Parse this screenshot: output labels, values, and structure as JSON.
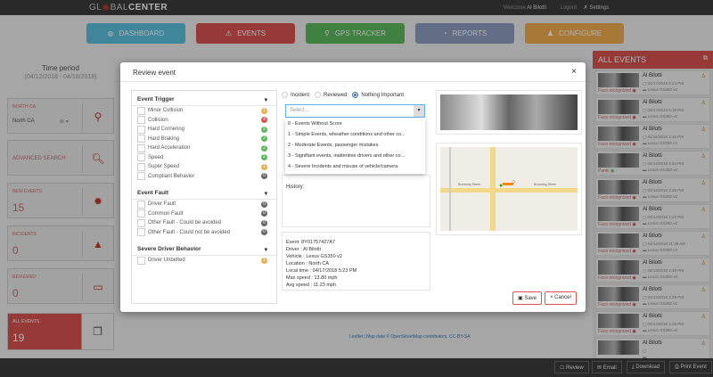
{
  "header": {
    "logo_prefix": "GL",
    "logo_mid": "BAL",
    "logo_bold": "CENTER",
    "welcome": "Welcome",
    "user": "Al Bilotti",
    "logout": "Logout",
    "settings": "Settings"
  },
  "nav": [
    {
      "label": "DASHBOARD",
      "icon": "dashboard-icon",
      "color": "#5bc0de"
    },
    {
      "label": "EVENTS",
      "icon": "warning-icon",
      "color": "#d9534f"
    },
    {
      "label": "GPS TRACKER",
      "icon": "map-pin-icon",
      "color": "#5cb85c"
    },
    {
      "label": "REPORTS",
      "icon": "pie-chart-icon",
      "color": "#8e9dbf"
    },
    {
      "label": "CONFIGURE",
      "icon": "user-icon",
      "color": "#f0ad4e"
    }
  ],
  "sidebar": {
    "time_period": "Time period",
    "range": "(04/12/2018 - 04/18/2018)",
    "region_label": "NORTH CA",
    "region_value": "North CA",
    "advanced": "ADVANCED SEARCH",
    "new_events": {
      "label": "NEW EVENTS",
      "value": "15"
    },
    "incidents": {
      "label": "INCIDENTS",
      "value": "0"
    },
    "reviewed": {
      "label": "REVIEWED",
      "value": "0"
    },
    "all_events": {
      "label": "ALL EVENTS",
      "value": "19"
    }
  },
  "right": {
    "title": "ALL EVENTS",
    "items": [
      {
        "name": "Al Bilotti",
        "date": "04/17/2018 5:23 PM",
        "vehicle": "Lexus GS350 v2",
        "status": "Face recognized"
      },
      {
        "name": "Al Bilotti",
        "date": "04/17/2018 5:18 PM",
        "vehicle": "Lexus GS350 v2",
        "status": "Face recognized"
      },
      {
        "name": "Al Bilotti",
        "date": "04/15/2018 1:45 PM",
        "vehicle": "Lexus GS350 v2",
        "status": "Face recognized"
      },
      {
        "name": "Al Bilotti",
        "date": "04/14/2018 2:34 PM",
        "vehicle": "Lexus GS350 v2",
        "status": "Panic"
      },
      {
        "name": "Al Bilotti",
        "date": "04/14/2018 2:26 PM",
        "vehicle": "Lexus GS350 v2",
        "status": "Face recognized"
      },
      {
        "name": "Al Bilotti",
        "date": "04/14/2018 1:44 PM",
        "vehicle": "Lexus GS350 v2",
        "status": "Face recognized"
      },
      {
        "name": "Al Bilotti",
        "date": "04/14/2018 11:38 AM",
        "vehicle": "Lexus GS350 v2",
        "status": "Face recognized"
      },
      {
        "name": "Al Bilotti",
        "date": "04/13/2018 2:49 PM",
        "vehicle": "Lexus GS350 v2",
        "status": "Face recognized"
      },
      {
        "name": "Al Bilotti",
        "date": "04/13/2018 2:29 PM",
        "vehicle": "Lexus GS350 v2",
        "status": "Face recognized"
      },
      {
        "name": "Al Bilotti",
        "date": "04/13/2018 1:28 PM",
        "vehicle": "Lexus GS350 v2",
        "status": "Face recognized"
      },
      {
        "name": "Al Bilotti",
        "date": "",
        "vehicle": "",
        "status": ""
      }
    ]
  },
  "bottom": {
    "review": "Review",
    "email": "Email",
    "download": "Download",
    "print": "Print Event"
  },
  "attribution": {
    "leaflet": "Leaflet",
    "text": " | Map data © ",
    "osm": "OpenStreetMap",
    "contrib": " contributors, ",
    "license": "CC-BY-SA"
  },
  "modal": {
    "title": "Review event",
    "close": "×",
    "sections": [
      {
        "title": "Event Trigger",
        "items": [
          {
            "label": "Minor Collision",
            "count": "1",
            "color": "#f0ad4e"
          },
          {
            "label": "Collision",
            "count": "4",
            "color": "#d9534f"
          },
          {
            "label": "Hard Cornering",
            "count": "2",
            "color": "#5cb85c"
          },
          {
            "label": "Hard Braking",
            "count": "2",
            "color": "#5cb85c"
          },
          {
            "label": "Hard Acceleration",
            "count": "2",
            "color": "#5cb85c"
          },
          {
            "label": "Speed",
            "count": "2",
            "color": "#5cb85c"
          },
          {
            "label": "Super Speed",
            "count": "1",
            "color": "#f0ad4e"
          },
          {
            "label": "Compliant Behavior",
            "count": "0",
            "color": "#666666"
          }
        ]
      },
      {
        "title": "Event Fault",
        "items": [
          {
            "label": "Driver Fault",
            "count": "0",
            "color": "#666666"
          },
          {
            "label": "Common Fault",
            "count": "0",
            "color": "#666666"
          },
          {
            "label": "Other Fault - Could be avoided",
            "count": "0",
            "color": "#666666"
          },
          {
            "label": "Other Fault - Could not be avoided",
            "count": "0",
            "color": "#666666"
          }
        ]
      },
      {
        "title": "Severe Driver Behavior",
        "items": [
          {
            "label": "Driver Unbelted",
            "count": "1",
            "color": "#f0ad4e"
          }
        ]
      }
    ],
    "radios": [
      {
        "label": "Incident",
        "checked": false
      },
      {
        "label": "Reviewed",
        "checked": false
      },
      {
        "label": "Nothing Important",
        "checked": true
      }
    ],
    "select_placeholder": "Select...",
    "options": [
      "0 - Events Without Score",
      "1 - Simple Events, wheather conditions and other co...",
      "2 - Moderate Events, passenger mistakes",
      "3 - Signifiant events, inattentive drivers and other co...",
      "4 - Severe Incidents and misuse of vehicle/camera"
    ],
    "history_label": "History:",
    "info": [
      "Event: 8Y01757427A7",
      "Driver : Al Bilotti",
      "Vehicle : Lexus GS350 v2",
      "Location : North CA",
      "Local time : 04/17/2018 5:23 PM",
      "Max speed : 13.80 mph",
      "Avg speed : 11.23 mph"
    ],
    "map_labels": {
      "street1": "Browning Street",
      "street2": "Browning Street"
    },
    "save": "Save",
    "cancel": "Cancel"
  }
}
